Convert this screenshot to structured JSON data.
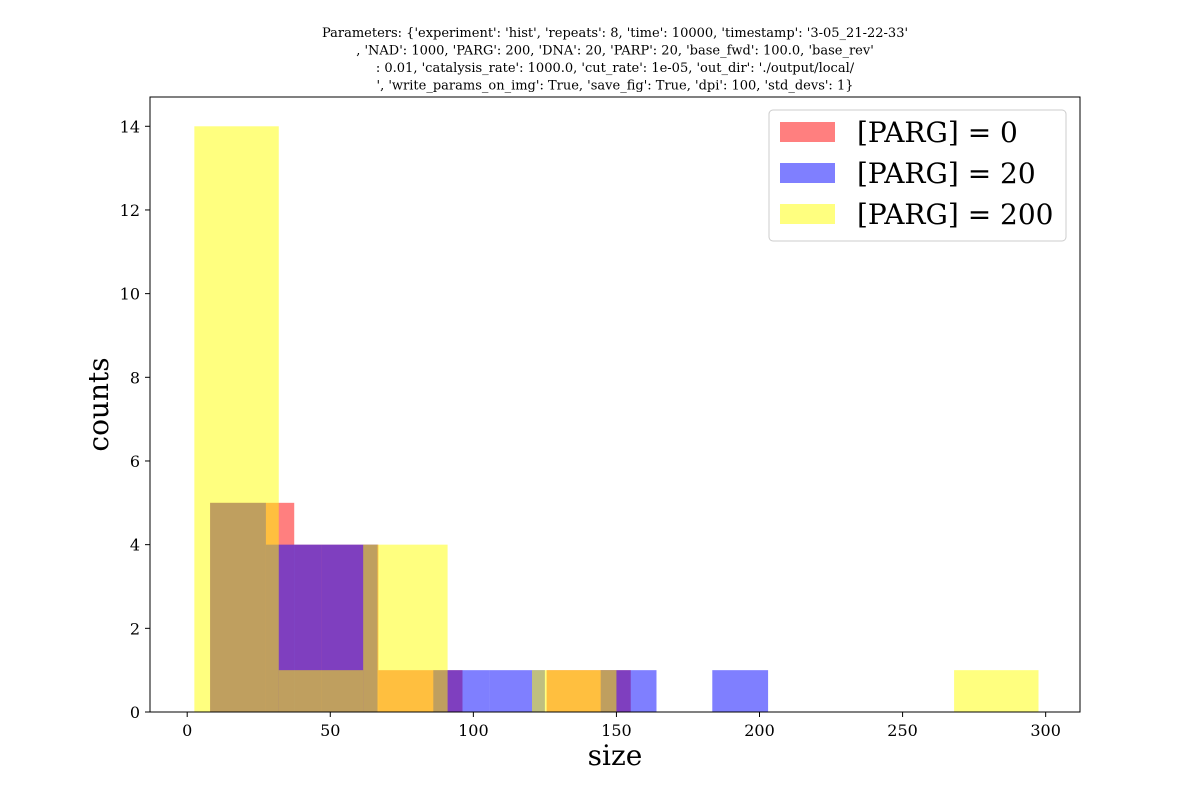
{
  "chart_data": {
    "type": "bar",
    "title_lines": [
      "Parameters: {'experiment': 'hist', 'repeats': 8, 'time': 10000, 'timestamp': '3-05_21-22-33'",
      ", 'NAD': 1000, 'PARG': 200, 'DNA': 20, 'PARP': 20, 'base_fwd': 100.0, 'base_rev'",
      ": 0.01, 'catalysis_rate': 1000.0, 'cut_rate': 1e-05, 'out_dir': './output/local/",
      "', 'write_params_on_img': True, 'save_fig': True, 'dpi': 100, 'std_devs': 1}"
    ],
    "xlabel": "size",
    "ylabel": "counts",
    "xlim": [
      -13,
      312
    ],
    "ylim": [
      0,
      14.7
    ],
    "xticks": [
      0,
      50,
      100,
      150,
      200,
      250,
      300
    ],
    "yticks": [
      0,
      2,
      4,
      6,
      8,
      10,
      12,
      14
    ],
    "grid": false,
    "legend_position": "top-right",
    "series": [
      {
        "name": "[PARG] = 0",
        "color": "#ff0000",
        "opacity": 0.5,
        "bins": [
          [
            8,
            37.4,
            5
          ],
          [
            37.4,
            66.8,
            4
          ],
          [
            66.8,
            96.2,
            1
          ],
          [
            125.6,
            155.0,
            1
          ]
        ]
      },
      {
        "name": "[PARG] = 20",
        "color": "#0000ff",
        "opacity": 0.5,
        "bins": [
          [
            8,
            27.5,
            5
          ],
          [
            27.5,
            47.0,
            4
          ],
          [
            47.0,
            66.5,
            4
          ],
          [
            86.0,
            105.5,
            1
          ],
          [
            105.5,
            125.0,
            1
          ],
          [
            144.5,
            164.0,
            1
          ],
          [
            183.5,
            203.0,
            1
          ]
        ]
      },
      {
        "name": "[PARG] = 200",
        "color": "#ffff00",
        "opacity": 0.5,
        "bins": [
          [
            2.5,
            32.0,
            14
          ],
          [
            32.0,
            61.5,
            1
          ],
          [
            61.5,
            91.0,
            4
          ],
          [
            120.5,
            150.0,
            1
          ],
          [
            268.0,
            297.5,
            1
          ]
        ]
      }
    ]
  }
}
